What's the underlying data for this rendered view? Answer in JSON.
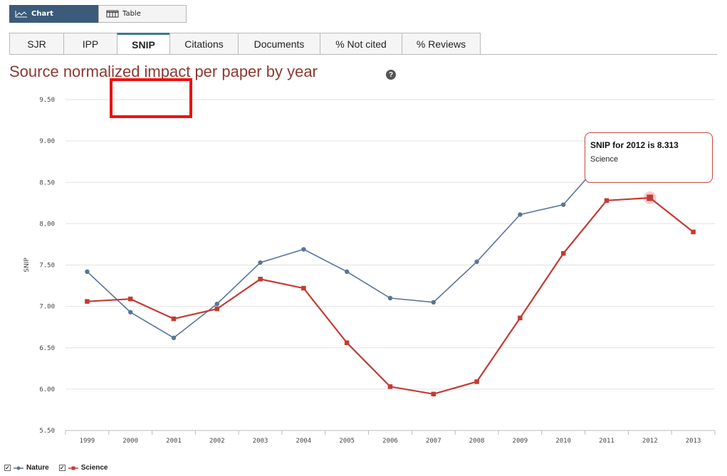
{
  "view_toggle": {
    "chart_label": "Chart",
    "table_label": "Table",
    "chart_icon": "line-chart-icon",
    "table_icon": "table-icon"
  },
  "tabs": [
    {
      "label": "SJR"
    },
    {
      "label": "IPP"
    },
    {
      "label": "SNIP"
    },
    {
      "label": "Citations"
    },
    {
      "label": "Documents"
    },
    {
      "label": "% Not cited"
    },
    {
      "label": "% Reviews"
    }
  ],
  "active_tab": "SNIP",
  "title": "Source normalized impact per paper by year",
  "help_icon": "?",
  "tooltip": {
    "title": "SNIP for 2012 is 8.313",
    "series": "Science"
  },
  "colors": {
    "nature": "#5a7499",
    "science": "#c43a34",
    "title": "#8c3a30",
    "active_tab_accent": "#3a7c8c",
    "annotation_box": "#ee1111"
  },
  "chart_data": {
    "type": "line",
    "title": "Source normalized impact per paper by year",
    "ylabel": "SNIP",
    "xlabel": "",
    "ylim": [
      5.5,
      9.5
    ],
    "y_ticks": [
      "9.50",
      "9.00",
      "8.50",
      "8.00",
      "7.50",
      "7.00",
      "6.50",
      "6.00",
      "5.50"
    ],
    "categories": [
      "1999",
      "2000",
      "2001",
      "2002",
      "2003",
      "2004",
      "2005",
      "2006",
      "2007",
      "2008",
      "2009",
      "2010",
      "2011",
      "2012",
      "2013"
    ],
    "series": [
      {
        "name": "Nature",
        "values": [
          7.42,
          6.93,
          6.62,
          7.03,
          7.53,
          7.69,
          7.42,
          7.1,
          7.05,
          7.54,
          8.11,
          8.23,
          8.82,
          null,
          null
        ]
      },
      {
        "name": "Science",
        "values": [
          7.06,
          7.09,
          6.85,
          6.97,
          7.33,
          7.22,
          6.56,
          6.03,
          5.94,
          6.09,
          6.86,
          7.64,
          8.28,
          8.313,
          7.9
        ]
      }
    ],
    "highlight": {
      "series": "Science",
      "category": "2012",
      "value": 8.313
    },
    "legend": "bottom-left",
    "grid": true
  }
}
